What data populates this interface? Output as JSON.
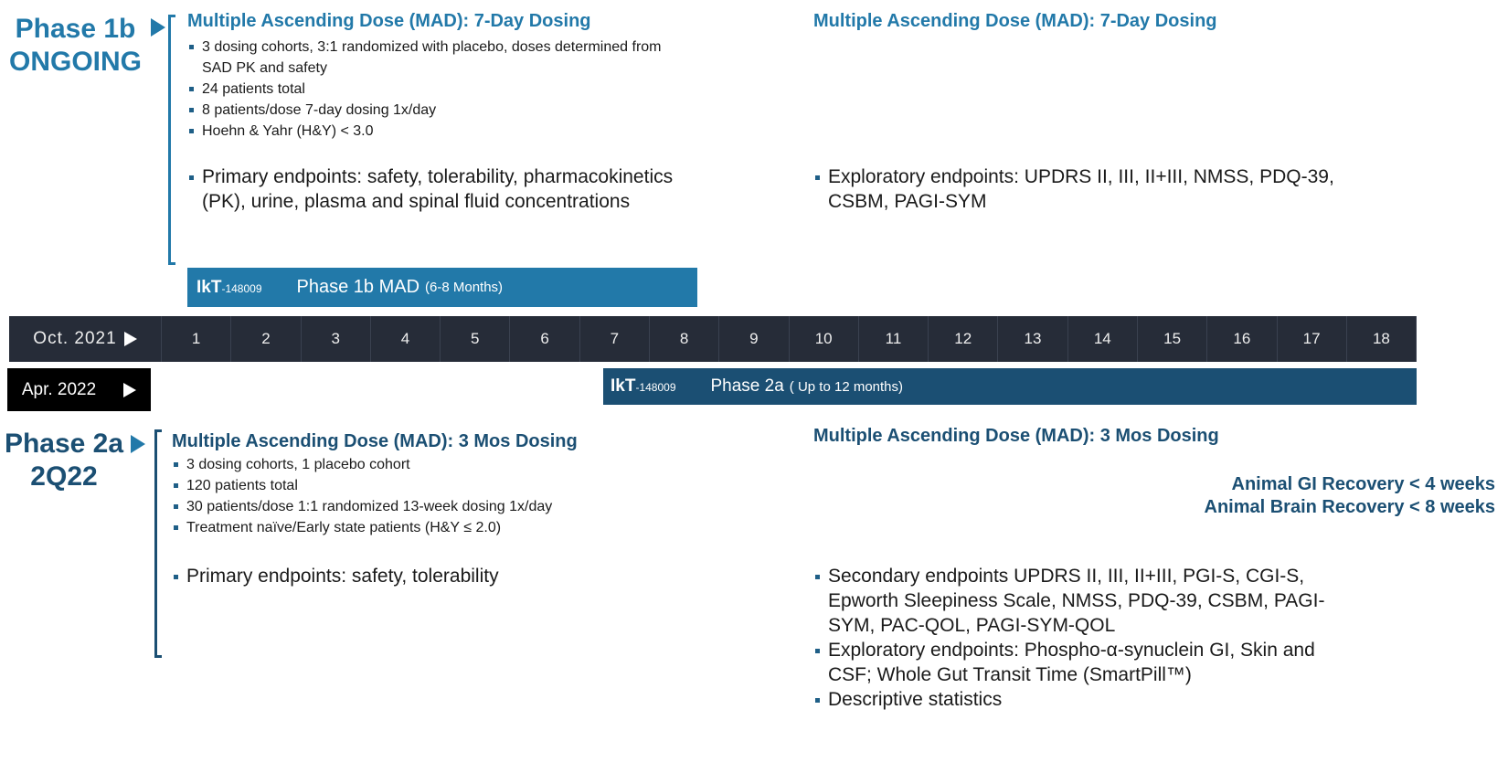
{
  "phase1b": {
    "title_line1": "Phase 1b",
    "title_line2": "ONGOING",
    "heading": "Multiple Ascending Dose (MAD):  7-Day Dosing",
    "bullets": [
      "3 dosing cohorts, 3:1 randomized with placebo, doses determined from SAD PK and safety",
      "24 patients total",
      "8 patients/dose 7-day dosing 1x/day",
      "Hoehn & Yahr  (H&Y) < 3.0"
    ],
    "primary": "Primary endpoints:  safety, tolerability, pharmacokinetics (PK), urine, plasma and spinal fluid concentrations",
    "right_heading": "Multiple Ascending Dose (MAD):  7-Day Dosing",
    "exploratory": "Exploratory endpoints:  UPDRS II, III, II+III, NMSS, PDQ-39, CSBM, PAGI-SYM",
    "bar": {
      "logo": "IkT",
      "logo_num": "-148009",
      "label": "Phase 1b MAD",
      "duration": "(6-8 Months)"
    }
  },
  "timeline": {
    "start_label": "Oct. 2021",
    "months": [
      "1",
      "2",
      "3",
      "4",
      "5",
      "6",
      "7",
      "8",
      "9",
      "10",
      "11",
      "12",
      "13",
      "14",
      "15",
      "16",
      "17",
      "18"
    ],
    "phase2_start": "Apr. 2022"
  },
  "phase2a": {
    "title_line1": "Phase 2a",
    "title_line2": "2Q22",
    "heading": "Multiple Ascending Dose (MAD): 3 Mos Dosing",
    "bullets": [
      "3 dosing cohorts, 1 placebo cohort",
      "120 patients total",
      "30 patients/dose 1:1 randomized 13-week dosing 1x/day",
      "Treatment naïve/Early state patients (H&Y ≤ 2.0)"
    ],
    "primary": "Primary endpoints: safety, tolerability",
    "right_heading": "Multiple Ascending Dose (MAD): 3 Mos Dosing",
    "recovery": [
      "Animal GI Recovery < 4 weeks",
      "Animal Brain Recovery < 8 weeks"
    ],
    "right_bullets": [
      "Secondary endpoints UPDRS II, III, II+III, PGI-S, CGI-S, Epworth Sleepiness Scale, NMSS, PDQ-39, CSBM, PAGI-SYM, PAC-QOL, PAGI-SYM-QOL",
      "Exploratory endpoints:  Phospho-α-synuclein GI, Skin and CSF; Whole Gut Transit Time (SmartPill™)",
      "Descriptive statistics"
    ],
    "bar": {
      "logo": "IkT",
      "logo_num": "-148009",
      "label": "Phase 2a",
      "duration": "( Up to 12 months)"
    }
  },
  "colors": {
    "phase1b": "#2279a9",
    "phase2a": "#1b4f73",
    "timeline": "#262c38"
  }
}
